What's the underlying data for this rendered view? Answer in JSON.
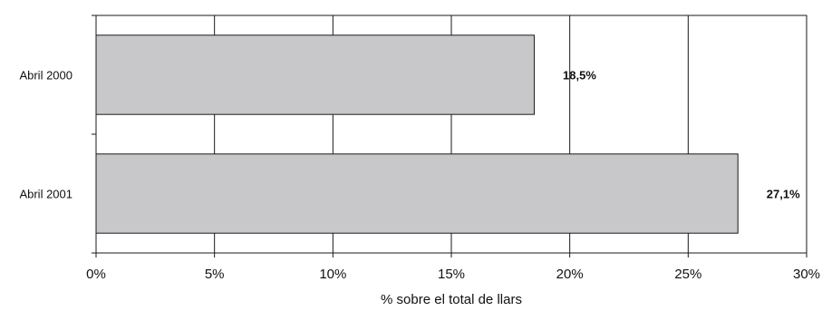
{
  "chart_data": {
    "type": "bar",
    "orientation": "horizontal",
    "categories": [
      "Abril 2000",
      "Abril 2001"
    ],
    "values": [
      18.5,
      27.1
    ],
    "value_labels": [
      "18,5%",
      "27,1%"
    ],
    "title": "",
    "xlabel": "% sobre el total de llars",
    "ylabel": "",
    "xlim": [
      0,
      30
    ],
    "x_ticks": [
      0,
      5,
      10,
      15,
      20,
      25,
      30
    ],
    "x_tick_labels": [
      "0%",
      "5%",
      "10%",
      "15%",
      "20%",
      "25%",
      "30%"
    ],
    "grid": "vertical",
    "legend": "none",
    "colors": {
      "bar_fill": "#c8c8cb",
      "bar_stroke": "#1a1a1a",
      "grid": "#1a1a1a",
      "axis": "#1a1a1a"
    }
  }
}
